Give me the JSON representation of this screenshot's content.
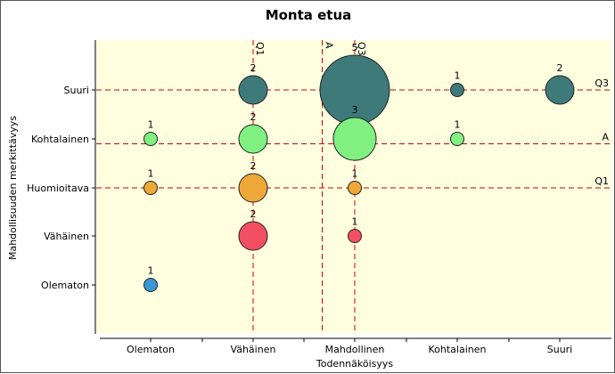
{
  "chart_data": {
    "type": "scatter",
    "title": "Monta etua",
    "xlabel": "Todennäköisyys",
    "ylabel": "Mahdollisuuden merkittävyys",
    "x_categories": [
      "Olematon",
      "Vähäinen",
      "Mahdollinen",
      "Kohtalainen",
      "Suuri"
    ],
    "y_categories": [
      "Olematon",
      "Vähäinen",
      "Huomioitava",
      "Kohtalainen",
      "Suuri"
    ],
    "points": [
      {
        "x": "Olematon",
        "y": "Olematon",
        "count": 1,
        "color": "#3a97d4"
      },
      {
        "x": "Olematon",
        "y": "Huomioitava",
        "count": 1,
        "color": "#eda838"
      },
      {
        "x": "Olematon",
        "y": "Kohtalainen",
        "count": 1,
        "color": "#80f080"
      },
      {
        "x": "Vähäinen",
        "y": "Vähäinen",
        "count": 2,
        "color": "#f25062"
      },
      {
        "x": "Vähäinen",
        "y": "Huomioitava",
        "count": 2,
        "color": "#eda838"
      },
      {
        "x": "Vähäinen",
        "y": "Kohtalainen",
        "count": 2,
        "color": "#80f080"
      },
      {
        "x": "Vähäinen",
        "y": "Suuri",
        "count": 2,
        "color": "#3f7a7a"
      },
      {
        "x": "Mahdollinen",
        "y": "Vähäinen",
        "count": 1,
        "color": "#f25062"
      },
      {
        "x": "Mahdollinen",
        "y": "Huomioitava",
        "count": 1,
        "color": "#eda838"
      },
      {
        "x": "Mahdollinen",
        "y": "Kohtalainen",
        "count": 3,
        "color": "#80f080"
      },
      {
        "x": "Mahdollinen",
        "y": "Suuri",
        "count": 5,
        "color": "#3f7a7a"
      },
      {
        "x": "Kohtalainen",
        "y": "Kohtalainen",
        "count": 1,
        "color": "#80f080"
      },
      {
        "x": "Kohtalainen",
        "y": "Suuri",
        "count": 1,
        "color": "#3f7a7a"
      },
      {
        "x": "Suuri",
        "y": "Suuri",
        "count": 2,
        "color": "#3f7a7a"
      }
    ],
    "vertical_reference_lines": [
      {
        "label": "Q1",
        "x": 2.0
      },
      {
        "label": "A",
        "x": 2.68
      },
      {
        "label": "Q3",
        "x": 3.0
      }
    ],
    "horizontal_reference_lines": [
      {
        "label": "Q3",
        "y": 5.0
      },
      {
        "label": "A",
        "y": 3.9
      },
      {
        "label": "Q1",
        "y": 3.0
      }
    ],
    "plot_background": "#ffffe0",
    "reference_line_color": "#cc0000",
    "grid": false,
    "legend": "none"
  }
}
